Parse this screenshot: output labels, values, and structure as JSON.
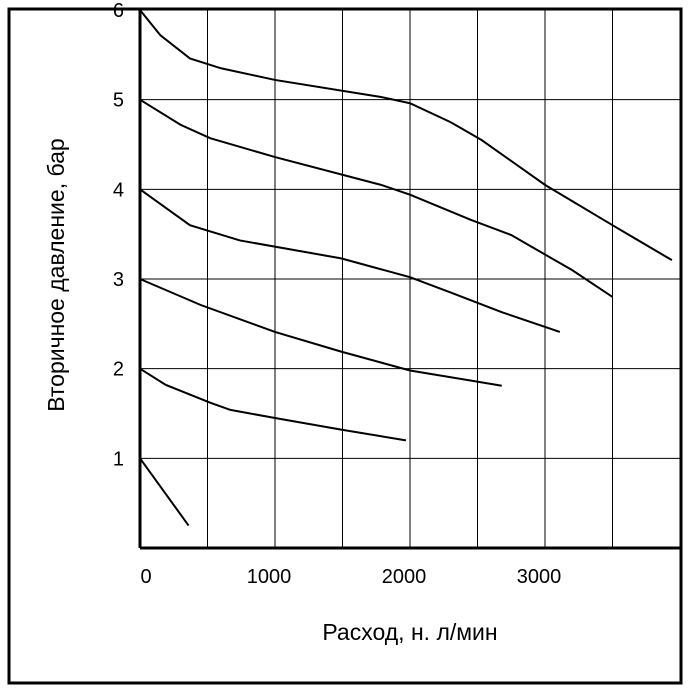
{
  "chart_data": {
    "type": "line",
    "xlabel": "Расход, н. л/мин",
    "ylabel": "Вторичное давление, бар",
    "xlim": [
      0,
      4000
    ],
    "ylim": [
      0,
      6
    ],
    "xticks": [
      0,
      1000,
      2000,
      3000
    ],
    "xminor": [
      500,
      1500,
      2500,
      3500
    ],
    "yticks": [
      1,
      2,
      3,
      4,
      5,
      6
    ],
    "grid": true,
    "series": [
      {
        "color": "#000000",
        "x": [
          0,
          150,
          370,
          600,
          1000,
          1785,
          2000,
          2300,
          2530,
          3000,
          3500,
          3940
        ],
        "values": [
          6,
          5.72,
          5.46,
          5.35,
          5.22,
          5.03,
          4.96,
          4.75,
          4.55,
          4.05,
          3.6,
          3.21
        ]
      },
      {
        "color": "#000000",
        "x": [
          0,
          300,
          520,
          1000,
          1785,
          2000,
          2450,
          2750,
          3200,
          3500
        ],
        "values": [
          5,
          4.72,
          4.57,
          4.36,
          4.05,
          3.94,
          3.66,
          3.49,
          3.1,
          2.8
        ]
      },
      {
        "color": "#000000",
        "x": [
          0,
          370,
          740,
          1490,
          2000,
          2300,
          2680,
          3110
        ],
        "values": [
          4,
          3.6,
          3.43,
          3.23,
          3.02,
          2.85,
          2.63,
          2.41
        ]
      },
      {
        "color": "#000000",
        "x": [
          0,
          450,
          1000,
          1490,
          2000,
          2680
        ],
        "values": [
          3,
          2.71,
          2.41,
          2.19,
          1.98,
          1.81
        ]
      },
      {
        "color": "#000000",
        "x": [
          0,
          190,
          520,
          670,
          1000,
          1490,
          1970
        ],
        "values": [
          2,
          1.82,
          1.62,
          1.54,
          1.45,
          1.32,
          1.2
        ]
      },
      {
        "color": "#000000",
        "x": [
          0,
          360
        ],
        "values": [
          1,
          0.25
        ]
      }
    ]
  }
}
